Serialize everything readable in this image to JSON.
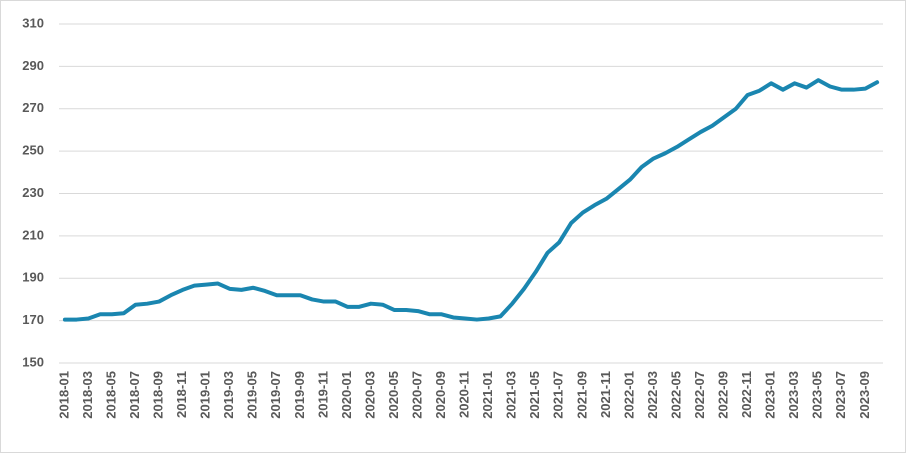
{
  "chart_data": {
    "type": "line",
    "categories": [
      "2018-01",
      null,
      "2018-03",
      null,
      "2018-05",
      null,
      "2018-07",
      null,
      "2018-09",
      null,
      "2018-11",
      null,
      "2019-01",
      null,
      "2019-03",
      null,
      "2019-05",
      null,
      "2019-07",
      null,
      "2019-09",
      null,
      "2019-11",
      null,
      "2020-01",
      null,
      "2020-03",
      null,
      "2020-05",
      null,
      "2020-07",
      null,
      "2020-09",
      null,
      "2020-11",
      null,
      "2021-01",
      null,
      "2021-03",
      null,
      "2021-05",
      null,
      "2021-07",
      null,
      "2021-09",
      null,
      "2021-11",
      null,
      "2022-01",
      null,
      "2022-03",
      null,
      "2022-05",
      null,
      "2022-07",
      null,
      "2022-09",
      null,
      "2022-11",
      null,
      "2023-01",
      null,
      "2023-03",
      null,
      "2023-05",
      null,
      "2023-07",
      null,
      "2023-09",
      null
    ],
    "values": [
      170.5,
      170.5,
      171,
      173,
      173,
      173.5,
      177.5,
      178,
      179,
      182,
      184.5,
      186.5,
      187,
      187.5,
      185,
      184.5,
      185.5,
      184,
      182,
      182,
      182,
      180,
      179,
      179,
      176.5,
      176.5,
      178,
      177.5,
      175,
      175,
      174.5,
      173,
      173,
      171.5,
      171,
      170.5,
      171,
      172,
      178,
      185,
      193,
      202,
      207,
      216,
      221,
      224.5,
      227.5,
      232,
      236.5,
      242.5,
      246.5,
      249,
      252,
      255.5,
      259,
      262,
      266,
      270,
      276.5,
      278.5,
      282,
      279,
      282,
      280,
      283.5,
      280.5,
      279,
      279,
      279.5,
      282.5
    ],
    "color": "#1a86b0",
    "ylim": [
      150,
      310
    ],
    "yticks": [
      150,
      170,
      190,
      210,
      230,
      250,
      270,
      290,
      310
    ],
    "grid": true
  }
}
